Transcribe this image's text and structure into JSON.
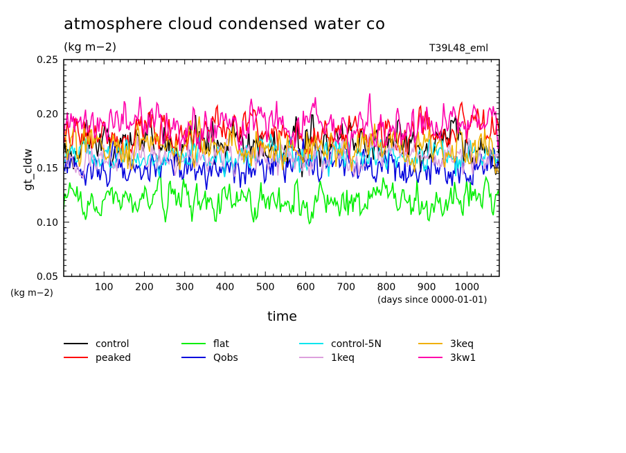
{
  "chart_data": {
    "type": "line",
    "title": "atmosphere cloud condensed water co",
    "units": "(kg m−2)",
    "run_name": "T39L48_eml",
    "ylabel": "gt_cldw",
    "xlabel": "time",
    "x_units": "(days since 0000-01-01)",
    "y_units": "(kg m−2)",
    "xlim": [
      0,
      1080
    ],
    "ylim": [
      0.05,
      0.25
    ],
    "x_ticks": [
      "100",
      "200",
      "300",
      "400",
      "500",
      "600",
      "700",
      "800",
      "900",
      "1000"
    ],
    "y_ticks": [
      "0.05",
      "0.10",
      "0.15",
      "0.20",
      "0.25"
    ],
    "grid": false,
    "legend_position": "bottom",
    "series": [
      {
        "name": "control",
        "color": "#000000",
        "mean": 0.172,
        "amplitude": 0.012,
        "seed": 11
      },
      {
        "name": "peaked",
        "color": "#ff0000",
        "mean": 0.181,
        "amplitude": 0.011,
        "seed": 23
      },
      {
        "name": "flat",
        "color": "#00ee00",
        "mean": 0.121,
        "amplitude": 0.01,
        "seed": 37
      },
      {
        "name": "Qobs",
        "color": "#0000dd",
        "mean": 0.152,
        "amplitude": 0.01,
        "seed": 41
      },
      {
        "name": "control-5N",
        "color": "#00e5ee",
        "mean": 0.161,
        "amplitude": 0.009,
        "seed": 53
      },
      {
        "name": "1keq",
        "color": "#dda0dd",
        "mean": 0.159,
        "amplitude": 0.009,
        "seed": 67
      },
      {
        "name": "3keq",
        "color": "#f0b000",
        "mean": 0.168,
        "amplitude": 0.011,
        "seed": 79
      },
      {
        "name": "3kw1",
        "color": "#ff00aa",
        "mean": 0.188,
        "amplitude": 0.012,
        "seed": 97
      }
    ]
  }
}
